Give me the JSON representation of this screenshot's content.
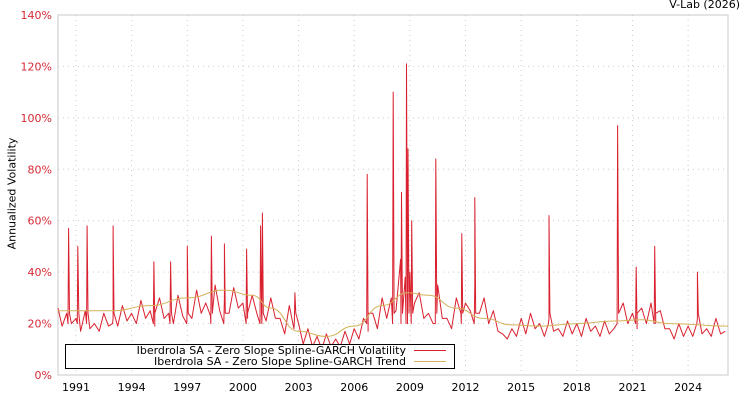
{
  "credit": "V-Lab (2026)",
  "chart_data": {
    "type": "line",
    "title": "",
    "xlabel": "",
    "ylabel": "Annualized Volatility",
    "xlim": [
      1990.03,
      2026.15
    ],
    "ylim": [
      0,
      140
    ],
    "y_ticks": [
      0,
      20,
      40,
      60,
      80,
      100,
      120,
      140
    ],
    "y_tick_labels": [
      "0%",
      "20%",
      "40%",
      "60%",
      "80%",
      "100%",
      "120%",
      "140%"
    ],
    "x_ticks": [
      1991,
      1994,
      1997,
      2000,
      2003,
      2006,
      2009,
      2012,
      2015,
      2018,
      2021,
      2024
    ],
    "x_tick_labels": [
      "1991",
      "1994",
      "1997",
      "2000",
      "2003",
      "2006",
      "2009",
      "2012",
      "2015",
      "2018",
      "2021",
      "2024"
    ],
    "grid": true,
    "legend_position": "bottom-left",
    "colors": {
      "volatility": "#d9202e",
      "trend": "#d4b15a",
      "axis_labels": "#d62a36",
      "grid": "#cccccc"
    },
    "series": [
      {
        "name": "Iberdrola SA - Zero Slope Spline-GARCH Volatility",
        "start": 1990.0,
        "step": 0.25,
        "values": [
          26,
          19,
          24,
          20,
          22,
          17,
          25,
          18,
          20,
          17,
          24,
          19,
          22,
          19,
          27,
          21,
          24,
          20,
          29,
          22,
          25,
          19,
          30,
          22,
          24,
          20,
          31,
          23,
          27,
          22,
          33,
          24,
          28,
          23,
          35,
          25,
          30,
          24,
          34,
          26,
          28,
          22,
          31,
          24,
          26,
          21,
          30,
          22,
          22,
          16,
          27,
          18,
          20,
          12,
          18,
          11,
          15,
          10,
          16,
          11,
          14,
          11,
          17,
          12,
          18,
          14,
          22,
          17,
          24,
          18,
          30,
          22,
          30,
          25,
          45,
          38,
          40,
          28,
          32,
          22,
          24,
          20,
          35,
          22,
          22,
          18,
          30,
          24,
          28,
          25,
          35,
          24,
          30,
          20,
          25,
          17,
          16,
          14,
          18,
          15,
          22,
          16,
          24,
          18,
          20,
          15,
          22,
          17,
          18,
          15,
          21,
          16,
          20,
          15,
          22,
          17,
          19,
          15,
          21,
          16,
          18,
          24,
          28,
          20,
          24,
          18,
          26,
          20,
          28,
          20,
          25,
          18,
          18,
          14,
          20,
          15,
          19,
          15,
          22,
          16,
          18,
          15,
          22,
          16,
          17
        ],
        "spikes": [
          [
            1990.6,
            57
          ],
          [
            1991.1,
            50
          ],
          [
            1991.6,
            58
          ],
          [
            1993.0,
            58
          ],
          [
            1995.2,
            44
          ],
          [
            1996.1,
            44
          ],
          [
            1997.0,
            50
          ],
          [
            1998.3,
            54
          ],
          [
            1999.0,
            51
          ],
          [
            2000.2,
            49
          ],
          [
            2000.95,
            58
          ],
          [
            2001.05,
            63
          ],
          [
            2002.8,
            32
          ],
          [
            2006.7,
            78
          ],
          [
            2008.1,
            110
          ],
          [
            2008.55,
            71
          ],
          [
            2008.82,
            121
          ],
          [
            2008.9,
            88
          ],
          [
            2009.1,
            60
          ],
          [
            2010.4,
            84
          ],
          [
            2011.8,
            55
          ],
          [
            2012.5,
            69
          ],
          [
            2016.5,
            62
          ],
          [
            2020.2,
            97
          ],
          [
            2021.2,
            42
          ],
          [
            2022.2,
            50
          ],
          [
            2024.5,
            40
          ]
        ]
      },
      {
        "name": "Iberdrola SA - Zero Slope Spline-GARCH Trend",
        "points": [
          [
            1990.0,
            25
          ],
          [
            1993,
            25
          ],
          [
            1995,
            27
          ],
          [
            1997,
            30
          ],
          [
            1999,
            33
          ],
          [
            2000.5,
            31
          ],
          [
            2001.5,
            26
          ],
          [
            2003,
            17
          ],
          [
            2004.5,
            15
          ],
          [
            2006,
            19
          ],
          [
            2007.5,
            27
          ],
          [
            2008.9,
            32
          ],
          [
            2010,
            31
          ],
          [
            2011.5,
            26
          ],
          [
            2013,
            22
          ],
          [
            2014.5,
            19.5
          ],
          [
            2016,
            19
          ],
          [
            2018,
            20
          ],
          [
            2020,
            21
          ],
          [
            2021.5,
            21.5
          ],
          [
            2023,
            20
          ],
          [
            2026.15,
            19
          ]
        ]
      }
    ]
  }
}
